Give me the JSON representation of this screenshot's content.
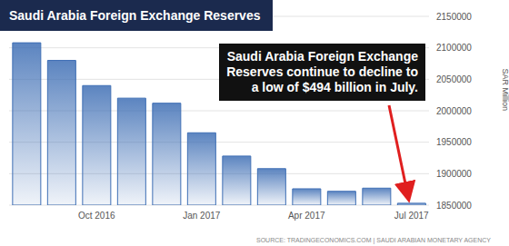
{
  "chart_data": {
    "type": "bar",
    "title": "Saudi Arabia Foreign Exchange Reserves",
    "categories": [
      null,
      null,
      "Oct 2016",
      null,
      null,
      "Jan 2017",
      null,
      null,
      "Apr 2017",
      null,
      null,
      "Jul 2017"
    ],
    "values": [
      2108000,
      2080000,
      2040000,
      2020000,
      2012000,
      1965000,
      1928000,
      1908000,
      1876000,
      1872000,
      1877000,
      1853000
    ],
    "color": "#3f6fb5",
    "ylim": [
      1850000,
      2150000
    ],
    "yticks": [
      1850000,
      1900000,
      1950000,
      2000000,
      2050000,
      2100000,
      2150000
    ],
    "y_label": "SAR Million",
    "grid": true,
    "annotation": [
      "Saudi Arabia Foreign Exchange",
      "Reserves continue to decline to",
      "a low of $494 billion in July."
    ],
    "source": "SOURCE: TRADINGECONOMICS.COM | SAUDI ARABIAN MONETARY AGENCY"
  }
}
